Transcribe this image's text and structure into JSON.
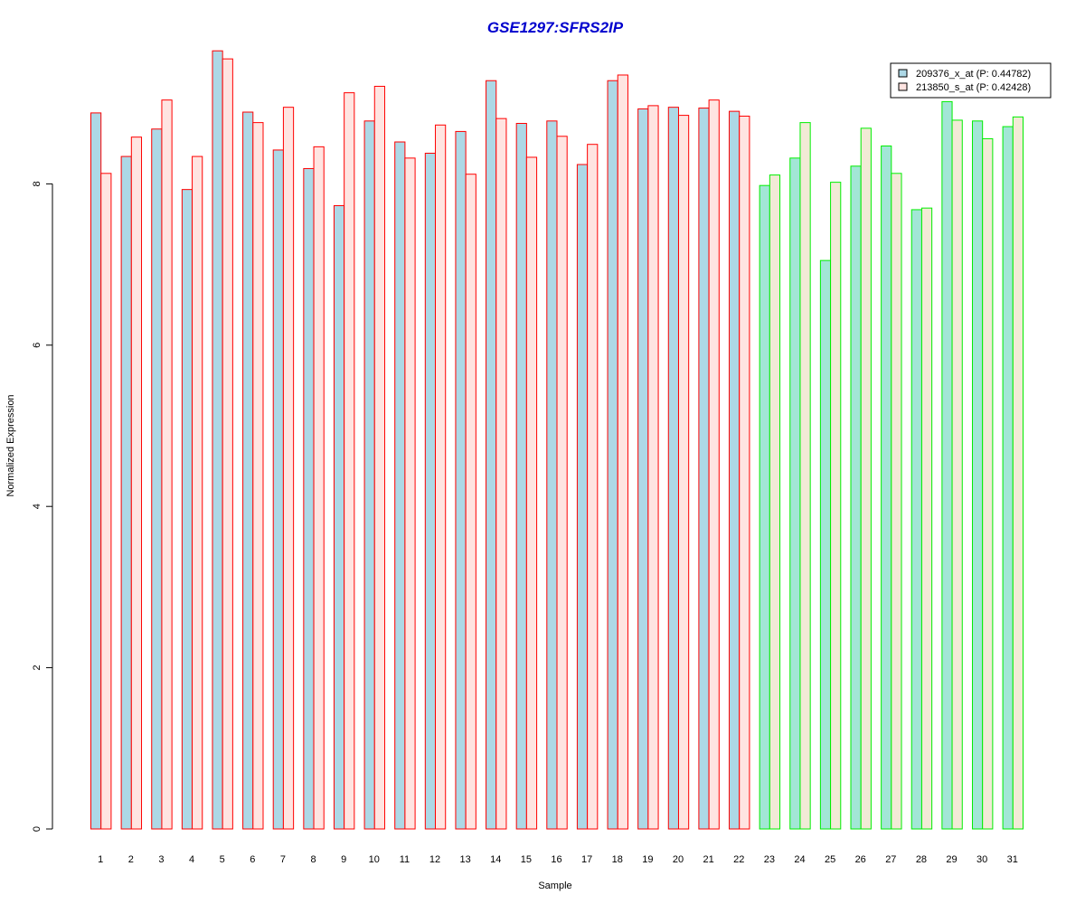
{
  "chart_data": {
    "type": "bar",
    "title": "GSE1297:SFRS2IP",
    "xlabel": "Sample",
    "ylabel": "Normalized Expression",
    "ylim": [
      0,
      10
    ],
    "yticks": [
      "0",
      "2",
      "4",
      "6",
      "8"
    ],
    "categories": [
      "1",
      "2",
      "3",
      "4",
      "5",
      "6",
      "7",
      "8",
      "9",
      "10",
      "11",
      "12",
      "13",
      "14",
      "15",
      "16",
      "17",
      "18",
      "19",
      "20",
      "21",
      "22",
      "23",
      "24",
      "25",
      "26",
      "27",
      "28",
      "29",
      "30",
      "31"
    ],
    "series": [
      {
        "name": "209376_x_at (P: 0.44782)",
        "values": [
          8.88,
          8.34,
          8.68,
          7.93,
          9.65,
          8.89,
          8.42,
          8.19,
          7.73,
          8.78,
          8.52,
          8.38,
          8.65,
          9.28,
          8.75,
          8.78,
          8.24,
          9.28,
          8.93,
          8.95,
          8.94,
          8.9,
          7.98,
          8.32,
          7.05,
          8.22,
          8.47,
          7.68,
          9.02,
          8.78,
          8.71
        ]
      },
      {
        "name": "213850_s_at (P: 0.42428)",
        "values": [
          8.13,
          8.58,
          9.04,
          8.34,
          9.55,
          8.76,
          8.95,
          8.46,
          9.13,
          9.21,
          8.32,
          8.73,
          8.12,
          8.81,
          8.33,
          8.59,
          8.49,
          9.35,
          8.97,
          8.85,
          9.04,
          8.84,
          8.11,
          8.76,
          8.02,
          8.69,
          8.13,
          7.7,
          8.79,
          8.56,
          8.83
        ]
      }
    ],
    "groups": [
      {
        "count": 22,
        "border_color": "#ff0000",
        "fills": [
          "#add8e6",
          "#ffe4e1"
        ]
      },
      {
        "count": 9,
        "border_color": "#00ee00",
        "fills": [
          "#a2e6d6",
          "#f2ead6"
        ]
      }
    ],
    "legend": {
      "placement": "top-right",
      "swatches": [
        "#add8e6",
        "#ffe4e1"
      ]
    },
    "colors": {
      "title": "#0000cd"
    }
  }
}
